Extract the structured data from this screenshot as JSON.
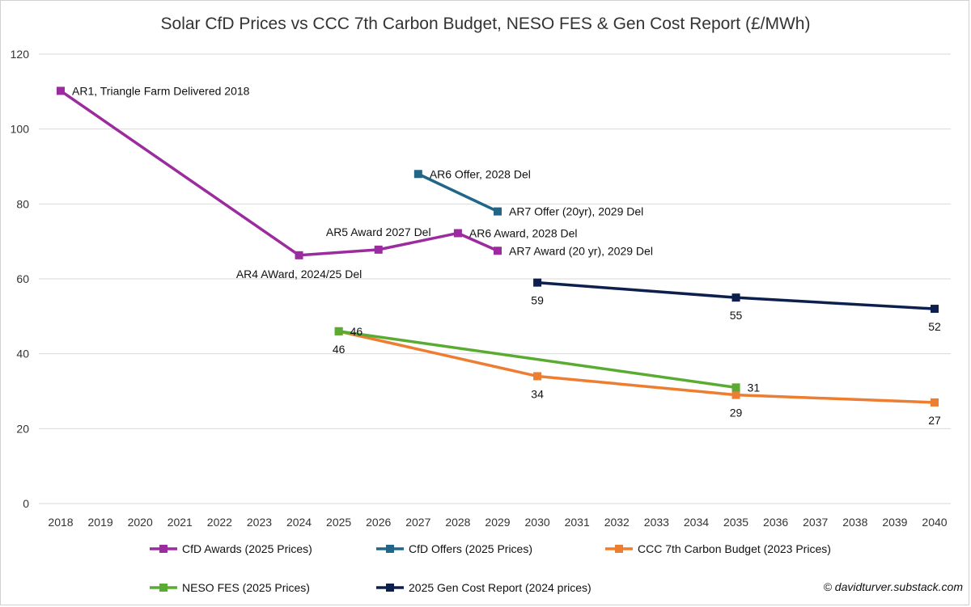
{
  "chart_data": {
    "type": "line",
    "title": "Solar CfD Prices vs CCC 7th Carbon Budget, NESO FES & Gen Cost Report (£/MWh)",
    "xlabel": "",
    "ylabel": "",
    "x": [
      2018,
      2019,
      2020,
      2021,
      2022,
      2023,
      2024,
      2025,
      2026,
      2027,
      2028,
      2029,
      2030,
      2031,
      2032,
      2033,
      2034,
      2035,
      2036,
      2037,
      2038,
      2039,
      2040
    ],
    "x_tick_labels": [
      "2018",
      "2019",
      "2020",
      "2021",
      "2022",
      "2023",
      "2024",
      "2025",
      "2026",
      "2027",
      "2028",
      "2029",
      "2030",
      "2031",
      "2032",
      "2033",
      "2034",
      "2035",
      "2036",
      "2037",
      "2038",
      "2039",
      "2040"
    ],
    "ylim": [
      0,
      120
    ],
    "y_ticks": [
      0,
      20,
      40,
      60,
      80,
      100,
      120
    ],
    "y_tick_labels": [
      "0",
      "20",
      "40",
      "60",
      "80",
      "100",
      "120"
    ],
    "grid": "horizontal",
    "legend_position": "bottom",
    "series": [
      {
        "name": "CfD Awards (2025 Prices)",
        "color": "#9b2b9e",
        "points": [
          {
            "x": 2018,
            "y": 110.2,
            "label": "AR1, Triangle Farm Delivered 2018",
            "label_pos": "right"
          },
          {
            "x": 2024,
            "y": 66.3,
            "label": "AR4 AWard, 2024/25 Del",
            "label_pos": "below-left"
          },
          {
            "x": 2026,
            "y": 67.8,
            "label": "AR5 Award 2027 Del",
            "label_pos": "above"
          },
          {
            "x": 2028,
            "y": 72.2,
            "label": "AR6 Award, 2028 Del",
            "label_pos": "right"
          },
          {
            "x": 2029,
            "y": 67.5,
            "label": "AR7 Award (20 yr), 2029 Del",
            "label_pos": "right"
          }
        ]
      },
      {
        "name": "CfD Offers (2025 Prices)",
        "color": "#1f6688",
        "points": [
          {
            "x": 2027,
            "y": 88,
            "label": "AR6 Offer, 2028 Del",
            "label_pos": "right"
          },
          {
            "x": 2029,
            "y": 78,
            "label": "AR7 Offer (20yr), 2029 Del",
            "label_pos": "right"
          }
        ]
      },
      {
        "name": "CCC 7th Carbon Budget (2023 Prices)",
        "color": "#ed7d31",
        "points": [
          {
            "x": 2025,
            "y": 46,
            "label": "46",
            "label_pos": "below"
          },
          {
            "x": 2030,
            "y": 34,
            "label": "34",
            "label_pos": "below"
          },
          {
            "x": 2035,
            "y": 29,
            "label": "29",
            "label_pos": "below"
          },
          {
            "x": 2040,
            "y": 27,
            "label": "27",
            "label_pos": "below"
          }
        ]
      },
      {
        "name": "NESO FES (2025 Prices)",
        "color": "#5aab32",
        "points": [
          {
            "x": 2025,
            "y": 46,
            "label": "46",
            "label_pos": "right"
          },
          {
            "x": 2035,
            "y": 31,
            "label": "31",
            "label_pos": "right"
          }
        ]
      },
      {
        "name": "2025 Gen Cost Report (2024 prices)",
        "color": "#0d1f4d",
        "points": [
          {
            "x": 2030,
            "y": 59,
            "label": "59",
            "label_pos": "below"
          },
          {
            "x": 2035,
            "y": 55,
            "label": "55",
            "label_pos": "below"
          },
          {
            "x": 2040,
            "y": 52,
            "label": "52",
            "label_pos": "below"
          }
        ]
      }
    ]
  },
  "credit": "© davidturver.substack.com"
}
